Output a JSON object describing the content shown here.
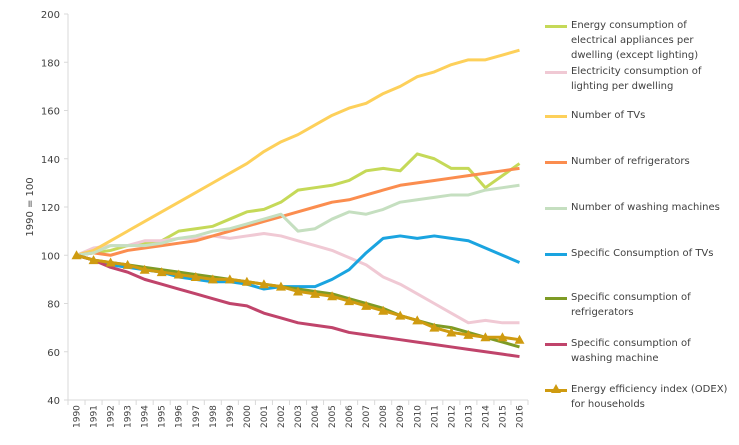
{
  "chart_data": {
    "type": "line",
    "ylabel": "1990 = 100",
    "xlabel": "",
    "ylim": [
      40,
      200
    ],
    "yticks": [
      40,
      60,
      80,
      100,
      120,
      140,
      160,
      180,
      200
    ],
    "grid": false,
    "legend_placement": "right",
    "x": [
      1990,
      1991,
      1992,
      1993,
      1994,
      1995,
      1996,
      1997,
      1998,
      1999,
      2000,
      2001,
      2002,
      2003,
      2004,
      2005,
      2006,
      2007,
      2008,
      2009,
      2010,
      2011,
      2012,
      2013,
      2014,
      2015,
      2016
    ],
    "series": [
      {
        "name": "Energy consumption of electrical appliances per dwelling (except lighting)",
        "color": "#c5d958",
        "values": [
          100,
          101,
          102,
          104,
          105,
          106,
          110,
          111,
          112,
          115,
          118,
          119,
          122,
          127,
          128,
          129,
          131,
          135,
          136,
          135,
          142,
          140,
          136,
          136,
          128,
          133,
          138
        ]
      },
      {
        "name": "Electricity consumption of lighting per dwelling",
        "color": "#f0c9d4",
        "values": [
          100,
          103,
          104,
          104,
          106,
          106,
          107,
          107,
          108,
          107,
          108,
          109,
          108,
          106,
          104,
          102,
          99,
          96,
          91,
          88,
          84,
          80,
          76,
          72,
          73,
          72,
          72
        ]
      },
      {
        "name": "Number of TVs",
        "color": "#fdd05a",
        "values": [
          100,
          102,
          106,
          110,
          114,
          118,
          122,
          126,
          130,
          134,
          138,
          143,
          147,
          150,
          154,
          158,
          161,
          163,
          167,
          170,
          174,
          176,
          179,
          181,
          181,
          183,
          185
        ]
      },
      {
        "name": "Number of refrigerators",
        "color": "#fb8d4f",
        "values": [
          100,
          101,
          100,
          102,
          103,
          104,
          105,
          106,
          108,
          110,
          112,
          114,
          116,
          118,
          120,
          122,
          123,
          125,
          127,
          129,
          130,
          131,
          132,
          133,
          134,
          135,
          136
        ]
      },
      {
        "name": "Number of washing machines",
        "color": "#c5dfc0",
        "values": [
          100,
          101,
          104,
          104,
          104,
          105,
          107,
          108,
          110,
          111,
          113,
          115,
          117,
          110,
          111,
          115,
          118,
          117,
          119,
          122,
          123,
          124,
          125,
          125,
          127,
          128,
          129
        ]
      },
      {
        "name": "Specific Consumption of TVs",
        "color": "#1aa4e0",
        "values": [
          100,
          98,
          96,
          95,
          94,
          93,
          91,
          90,
          89,
          89,
          88,
          86,
          87,
          87,
          87,
          90,
          94,
          101,
          107,
          108,
          107,
          108,
          107,
          106,
          103,
          100,
          97
        ]
      },
      {
        "name": "Specific consumption of refrigerators",
        "color": "#7e9b25",
        "values": [
          100,
          98,
          97,
          96,
          95,
          94,
          93,
          92,
          91,
          90,
          89,
          88,
          87,
          86,
          85,
          84,
          82,
          80,
          78,
          75,
          73,
          71,
          70,
          68,
          66,
          64,
          62
        ]
      },
      {
        "name": "Specific consumption of washing machine",
        "color": "#c0446b",
        "values": [
          100,
          98,
          95,
          93,
          90,
          88,
          86,
          84,
          82,
          80,
          79,
          76,
          74,
          72,
          71,
          70,
          68,
          67,
          66,
          65,
          64,
          63,
          62,
          61,
          60,
          59,
          58
        ]
      },
      {
        "name": "Energy efficiency index (ODEX) for households",
        "color": "#cf9b10",
        "marker": "triangle",
        "values": [
          100,
          98,
          97,
          96,
          94,
          93,
          92,
          91,
          90,
          90,
          89,
          88,
          87,
          85,
          84,
          83,
          81,
          79,
          77,
          75,
          73,
          70,
          68,
          67,
          66,
          66,
          65
        ]
      }
    ]
  }
}
